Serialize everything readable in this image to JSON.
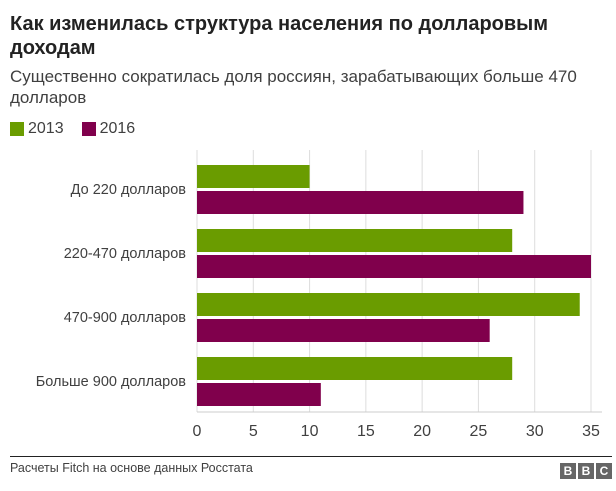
{
  "header": {
    "title": "Как изменилась структура населения по долларовым доходам",
    "subtitle": "Существенно сократилась доля россиян, зарабатывающих больше 470 долларов"
  },
  "footer": {
    "source": "Расчеты Fitch на основе данных Росстата",
    "logo_letters": [
      "B",
      "B",
      "C"
    ]
  },
  "colors": {
    "series_2013": "#6a9c00",
    "series_2016": "#80004c",
    "grid": "#dddddd",
    "axis": "#cccccc"
  },
  "chart_data": {
    "type": "bar",
    "orientation": "horizontal",
    "title": "Как изменилась структура населения по долларовым доходам",
    "subtitle": "Существенно сократилась доля россиян, зарабатывающих больше 470 долларов",
    "categories": [
      "До 220 долларов",
      "220-470 долларов",
      "470-900 долларов",
      "Больше 900 долларов"
    ],
    "series": [
      {
        "name": "2013",
        "values": [
          10,
          28,
          34,
          28
        ]
      },
      {
        "name": "2016",
        "values": [
          29,
          35,
          26,
          11
        ]
      }
    ],
    "xlim": [
      0,
      35
    ],
    "xticks": [
      0,
      5,
      10,
      15,
      20,
      25,
      30,
      35
    ],
    "xlabel": "",
    "ylabel": "",
    "grid": true,
    "legend": "top-left"
  }
}
